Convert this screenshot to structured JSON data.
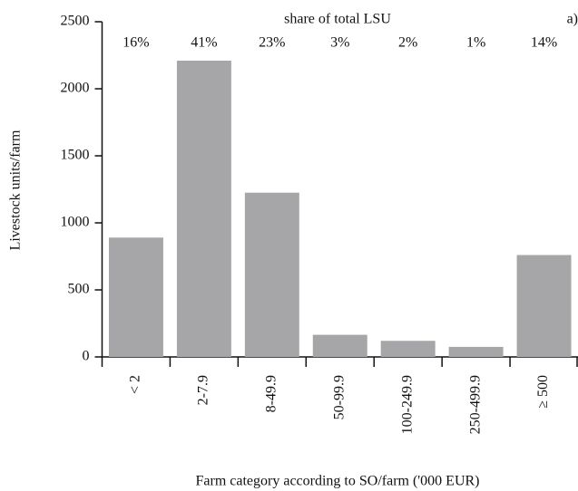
{
  "chart_data": {
    "type": "bar",
    "y_label": "Livestock units/farm",
    "x_label": "Farm category according to SO/farm ('000 EUR)",
    "annotation_title": "share of total LSU",
    "panel_label": "a)",
    "categories": [
      "< 2",
      "2-7.9",
      "8-49.9",
      "50-99.9",
      "100-249.9",
      "250-499.9",
      "≥ 500"
    ],
    "values": [
      890,
      2210,
      1225,
      165,
      120,
      75,
      760
    ],
    "shares": [
      "16%",
      "41%",
      "23%",
      "3%",
      "2%",
      "1%",
      "14%"
    ],
    "color": "#a6a6a8",
    "ylim": [
      0,
      2500
    ],
    "yticks": [
      0,
      500,
      1000,
      1500,
      2000,
      2500
    ],
    "grid": false
  }
}
